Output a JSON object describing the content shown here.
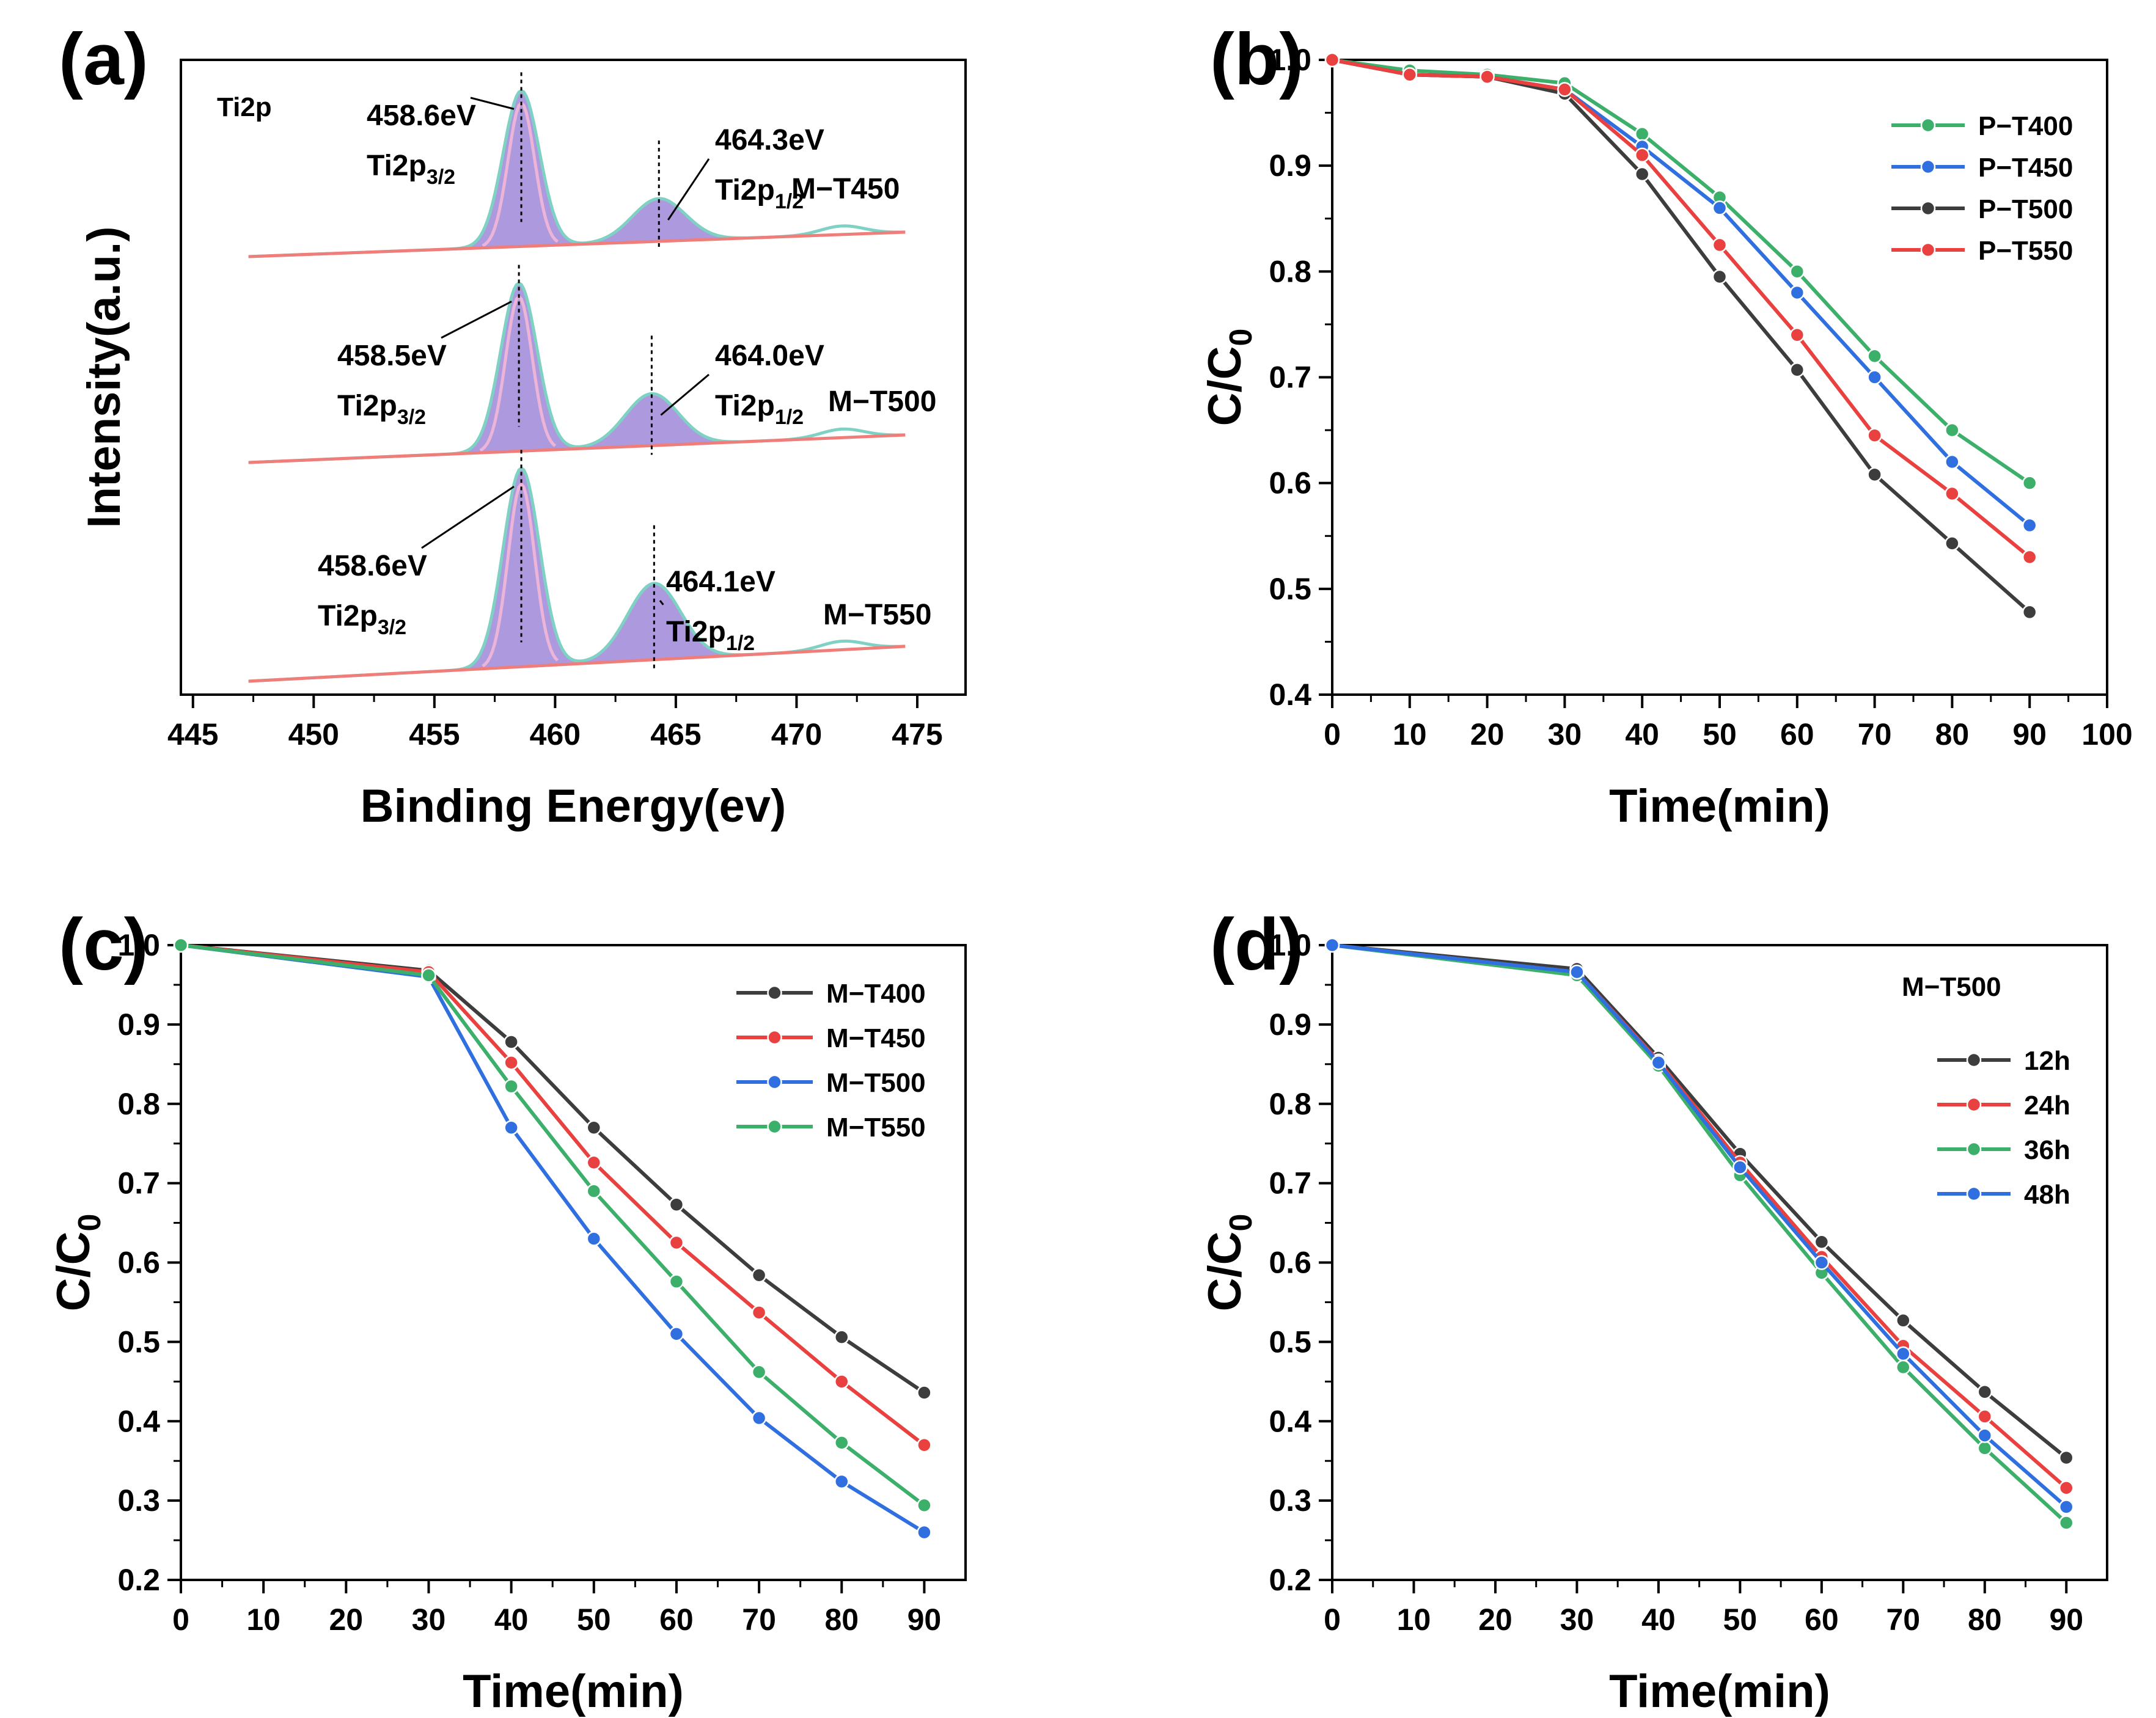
{
  "colors": {
    "green": "#3cb06a",
    "blue": "#2f6fe0",
    "black": "#3d3d3d",
    "red": "#e8413f",
    "purple_fill": "#9f88d8",
    "pink_fill": "#ecb5d8",
    "teal_line": "#7fd1c4",
    "baseline": "#ef7e7a"
  },
  "chart_data": [
    {
      "id": "a",
      "type": "line",
      "panel_label": "(a)",
      "title": "Ti2p",
      "xlabel": "Binding Energy(ev)",
      "ylabel": "Intensity(a.u.)",
      "xlim": [
        444.5,
        477.0
      ],
      "xticks": [
        445,
        450,
        455,
        460,
        465,
        470,
        475
      ],
      "spectra": [
        {
          "name": "M−T450",
          "peak1": {
            "position_ev": 458.6,
            "label_value": "458.6eV",
            "label_name": "Ti2p",
            "label_sub": "3/2"
          },
          "peak2": {
            "position_ev": 464.3,
            "label_value": "464.3eV",
            "label_name": "Ti2p",
            "label_sub": "1/2"
          }
        },
        {
          "name": "M−T500",
          "peak1": {
            "position_ev": 458.5,
            "label_value": "458.5eV",
            "label_name": "Ti2p",
            "label_sub": "3/2"
          },
          "peak2": {
            "position_ev": 464.0,
            "label_value": "464.0eV",
            "label_name": "Ti2p",
            "label_sub": "1/2"
          }
        },
        {
          "name": "M−T550",
          "peak1": {
            "position_ev": 458.6,
            "label_value": "458.6eV",
            "label_name": "Ti2p",
            "label_sub": "3/2"
          },
          "peak2": {
            "position_ev": 464.1,
            "label_value": "464.1eV",
            "label_name": "Ti2p",
            "label_sub": "1/2"
          }
        }
      ]
    },
    {
      "id": "b",
      "type": "line",
      "panel_label": "(b)",
      "xlabel": "Time(min)",
      "ylabel": "C/C",
      "ylabel_sub": "0",
      "xlim": [
        0,
        100
      ],
      "ylim": [
        0.4,
        1.0
      ],
      "xticks": [
        0,
        10,
        20,
        30,
        40,
        50,
        60,
        70,
        80,
        90,
        100
      ],
      "yticks": [
        "0.4",
        "0.5",
        "0.6",
        "0.7",
        "0.8",
        "0.9",
        "1.0"
      ],
      "x": [
        0,
        10,
        20,
        30,
        40,
        50,
        60,
        70,
        80,
        90
      ],
      "series": [
        {
          "name": "P−T400",
          "color": "#3cb06a",
          "values": [
            1.0,
            0.99,
            0.986,
            0.978,
            0.93,
            0.87,
            0.8,
            0.72,
            0.65,
            0.6
          ]
        },
        {
          "name": "P−T450",
          "color": "#2f6fe0",
          "values": [
            1.0,
            0.986,
            0.984,
            0.972,
            0.918,
            0.86,
            0.78,
            0.7,
            0.62,
            0.56
          ]
        },
        {
          "name": "P−T500",
          "color": "#3d3d3d",
          "values": [
            1.0,
            0.986,
            0.984,
            0.968,
            0.892,
            0.795,
            0.707,
            0.608,
            0.543,
            0.478
          ]
        },
        {
          "name": "P−T550",
          "color": "#e8413f",
          "values": [
            1.0,
            0.986,
            0.984,
            0.972,
            0.91,
            0.825,
            0.74,
            0.645,
            0.59,
            0.53
          ]
        }
      ]
    },
    {
      "id": "c",
      "type": "line",
      "panel_label": "(c)",
      "xlabel": "Time(min)",
      "ylabel": "C/C",
      "ylabel_sub": "0",
      "xlim": [
        0,
        95
      ],
      "ylim": [
        0.2,
        1.0
      ],
      "xticks": [
        0,
        10,
        20,
        30,
        40,
        50,
        60,
        70,
        80,
        90
      ],
      "yticks": [
        "0.2",
        "0.3",
        "0.4",
        "0.5",
        "0.6",
        "0.7",
        "0.8",
        "0.9",
        "1.0"
      ],
      "x": [
        0,
        30,
        40,
        50,
        60,
        70,
        80,
        90
      ],
      "series": [
        {
          "name": "M−T400",
          "color": "#3d3d3d",
          "values": [
            1.0,
            0.968,
            0.878,
            0.77,
            0.673,
            0.584,
            0.506,
            0.436
          ]
        },
        {
          "name": "M−T450",
          "color": "#e8413f",
          "values": [
            1.0,
            0.966,
            0.852,
            0.726,
            0.625,
            0.537,
            0.45,
            0.37
          ]
        },
        {
          "name": "M−T500",
          "color": "#2f6fe0",
          "values": [
            1.0,
            0.96,
            0.77,
            0.63,
            0.51,
            0.404,
            0.324,
            0.26
          ]
        },
        {
          "name": "M−T550",
          "color": "#3cb06a",
          "values": [
            1.0,
            0.962,
            0.822,
            0.69,
            0.576,
            0.462,
            0.373,
            0.294
          ]
        }
      ]
    },
    {
      "id": "d",
      "type": "line",
      "panel_label": "(d)",
      "annotation": "M−T500",
      "xlabel": "Time(min)",
      "ylabel": "C/C",
      "ylabel_sub": "0",
      "xlim": [
        0,
        95
      ],
      "ylim": [
        0.2,
        1.0
      ],
      "xticks": [
        0,
        10,
        20,
        30,
        40,
        50,
        60,
        70,
        80,
        90
      ],
      "yticks": [
        "0.2",
        "0.3",
        "0.4",
        "0.5",
        "0.6",
        "0.7",
        "0.8",
        "0.9",
        "1.0"
      ],
      "x": [
        0,
        30,
        40,
        50,
        60,
        70,
        80,
        90
      ],
      "series": [
        {
          "name": "12h",
          "color": "#3d3d3d",
          "values": [
            1.0,
            0.97,
            0.858,
            0.737,
            0.626,
            0.527,
            0.437,
            0.354
          ]
        },
        {
          "name": "24h",
          "color": "#e8413f",
          "values": [
            1.0,
            0.966,
            0.854,
            0.726,
            0.607,
            0.495,
            0.406,
            0.316
          ]
        },
        {
          "name": "36h",
          "color": "#3cb06a",
          "values": [
            1.0,
            0.962,
            0.848,
            0.71,
            0.587,
            0.468,
            0.366,
            0.272
          ]
        },
        {
          "name": "48h",
          "color": "#2f6fe0",
          "values": [
            1.0,
            0.966,
            0.852,
            0.72,
            0.6,
            0.485,
            0.382,
            0.292
          ]
        }
      ]
    }
  ]
}
